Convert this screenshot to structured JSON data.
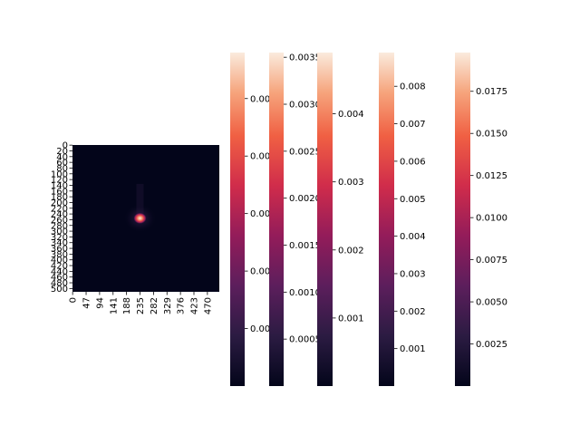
{
  "chart_data": {
    "type": "heatmap",
    "colormap": "rocket",
    "heatmap": {
      "rows": 512,
      "cols": 512,
      "x_ticks": [
        "0",
        "47",
        "94",
        "141",
        "188",
        "235",
        "282",
        "329",
        "376",
        "423",
        "470"
      ],
      "y_ticks": [
        "0",
        "20",
        "40",
        "60",
        "80",
        "100",
        "120",
        "140",
        "160",
        "180",
        "200",
        "220",
        "240",
        "260",
        "280",
        "300",
        "320",
        "340",
        "360",
        "380",
        "400",
        "420",
        "440",
        "460",
        "480",
        "500"
      ],
      "peak": {
        "x": 235,
        "y": 255
      },
      "background_level": 0.03
    },
    "colorbars": [
      {
        "name": "colorbar-1",
        "min": 0.0,
        "max": 0.0058,
        "ticks": [
          "0.001",
          "0.002",
          "0.003",
          "0.004",
          "0.005"
        ],
        "tick_values": [
          0.001,
          0.002,
          0.003,
          0.004,
          0.005
        ]
      },
      {
        "name": "colorbar-2",
        "min": 0.0,
        "max": 0.00355,
        "ticks": [
          "0.0005",
          "0.0010",
          "0.0015",
          "0.0020",
          "0.0025",
          "0.0030",
          "0.0035"
        ],
        "tick_values": [
          0.0005,
          0.001,
          0.0015,
          0.002,
          0.0025,
          0.003,
          0.0035
        ]
      },
      {
        "name": "colorbar-3",
        "min": 0.0,
        "max": 0.0049,
        "ticks": [
          "0.001",
          "0.002",
          "0.003",
          "0.004"
        ],
        "tick_values": [
          0.001,
          0.002,
          0.003,
          0.004
        ]
      },
      {
        "name": "colorbar-4",
        "min": 0.0,
        "max": 0.0089,
        "ticks": [
          "0.001",
          "0.002",
          "0.003",
          "0.004",
          "0.005",
          "0.006",
          "0.007",
          "0.008"
        ],
        "tick_values": [
          0.001,
          0.002,
          0.003,
          0.004,
          0.005,
          0.006,
          0.007,
          0.008
        ]
      },
      {
        "name": "colorbar-5",
        "min": 0.0,
        "max": 0.0198,
        "ticks": [
          "0.0025",
          "0.0050",
          "0.0075",
          "0.0100",
          "0.0125",
          "0.0150",
          "0.0175"
        ],
        "tick_values": [
          0.0025,
          0.005,
          0.0075,
          0.01,
          0.0125,
          0.015,
          0.0175
        ]
      }
    ]
  }
}
